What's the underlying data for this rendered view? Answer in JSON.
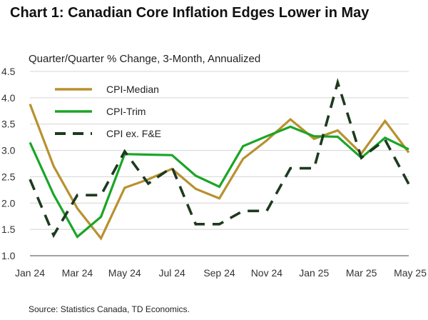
{
  "chart_data": {
    "type": "line",
    "title": "Chart 1: Canadian Core Inflation Edges Lower in May",
    "subtitle": "Quarter/Quarter % Change, 3-Month, Annualized",
    "xlabel": "",
    "ylabel": "",
    "ylim": [
      1.0,
      4.5
    ],
    "yticks": [
      "1.0",
      "1.5",
      "2.0",
      "2.5",
      "3.0",
      "3.5",
      "4.0",
      "4.5"
    ],
    "categories": [
      "Jan 24",
      "Feb 24",
      "Mar 24",
      "Apr 24",
      "May 24",
      "Jun 24",
      "Jul 24",
      "Aug 24",
      "Sep 24",
      "Oct 24",
      "Nov 24",
      "Dec 24",
      "Jan 25",
      "Feb 25",
      "Mar 25",
      "Apr 25",
      "May 25"
    ],
    "xtick_labels": [
      "Jan 24",
      "Mar 24",
      "May 24",
      "Jul 24",
      "Sep 24",
      "Nov 24",
      "Jan 25",
      "Mar 25",
      "May 25"
    ],
    "grid": "horizontal",
    "legend_position": "top-left",
    "series": [
      {
        "name": "CPI-Median",
        "color": "#b8912f",
        "dash": "solid",
        "values": [
          3.88,
          2.7,
          1.9,
          1.33,
          2.29,
          2.45,
          2.65,
          2.27,
          2.09,
          2.84,
          3.19,
          3.59,
          3.22,
          3.38,
          2.94,
          3.56,
          2.96
        ]
      },
      {
        "name": "CPI-Trim",
        "color": "#1aa526",
        "dash": "solid",
        "values": [
          3.15,
          2.16,
          1.36,
          1.74,
          2.93,
          2.92,
          2.91,
          2.52,
          2.31,
          3.08,
          3.27,
          3.45,
          3.27,
          3.26,
          2.86,
          3.24,
          3.02
        ]
      },
      {
        "name": "CPI ex. F&E",
        "color": "#1d3a1f",
        "dash": "dashed",
        "values": [
          2.45,
          1.39,
          2.15,
          2.15,
          2.98,
          2.37,
          2.68,
          1.6,
          1.6,
          1.85,
          1.85,
          2.66,
          2.66,
          4.29,
          2.86,
          3.2,
          2.36
        ]
      }
    ]
  },
  "source": "Source: Statistics Canada, TD Economics."
}
